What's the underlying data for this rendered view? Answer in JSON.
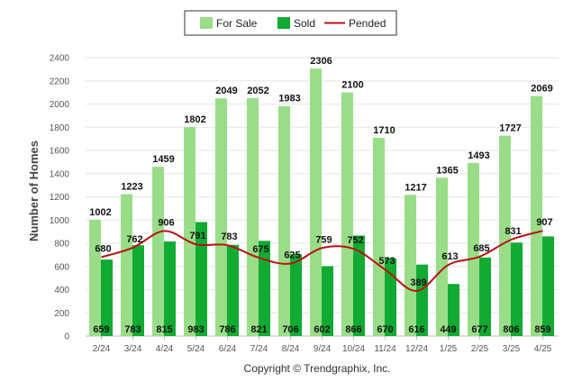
{
  "chart_data": {
    "type": "bar",
    "categories": [
      "2/24",
      "3/24",
      "4/24",
      "5/24",
      "6/24",
      "7/24",
      "8/24",
      "9/24",
      "10/24",
      "11/24",
      "12/24",
      "1/25",
      "2/25",
      "3/25",
      "4/25"
    ],
    "series": [
      {
        "name": "For Sale",
        "kind": "bar",
        "color": "#99dd88",
        "values": [
          1002,
          1223,
          1459,
          1802,
          2049,
          2052,
          1983,
          2306,
          2100,
          1710,
          1217,
          1365,
          1493,
          1727,
          2069
        ]
      },
      {
        "name": "Sold",
        "kind": "bar",
        "color": "#11aa33",
        "values": [
          659,
          783,
          815,
          983,
          786,
          821,
          706,
          602,
          866,
          670,
          616,
          449,
          677,
          806,
          859
        ]
      },
      {
        "name": "Pended",
        "kind": "line",
        "color": "#bb1111",
        "values": [
          680,
          762,
          906,
          791,
          783,
          675,
          625,
          759,
          752,
          573,
          389,
          613,
          685,
          831,
          907
        ]
      }
    ],
    "ylabel": "Number of Homes",
    "xlabel": "",
    "ylim": [
      0,
      2400
    ],
    "yticks": [
      0,
      200,
      400,
      600,
      800,
      1000,
      1200,
      1400,
      1600,
      1800,
      2000,
      2200,
      2400
    ],
    "grid": true,
    "legend_position": "top-center"
  },
  "footer": {
    "copyright": "Copyright © Trendgraphix, Inc."
  }
}
